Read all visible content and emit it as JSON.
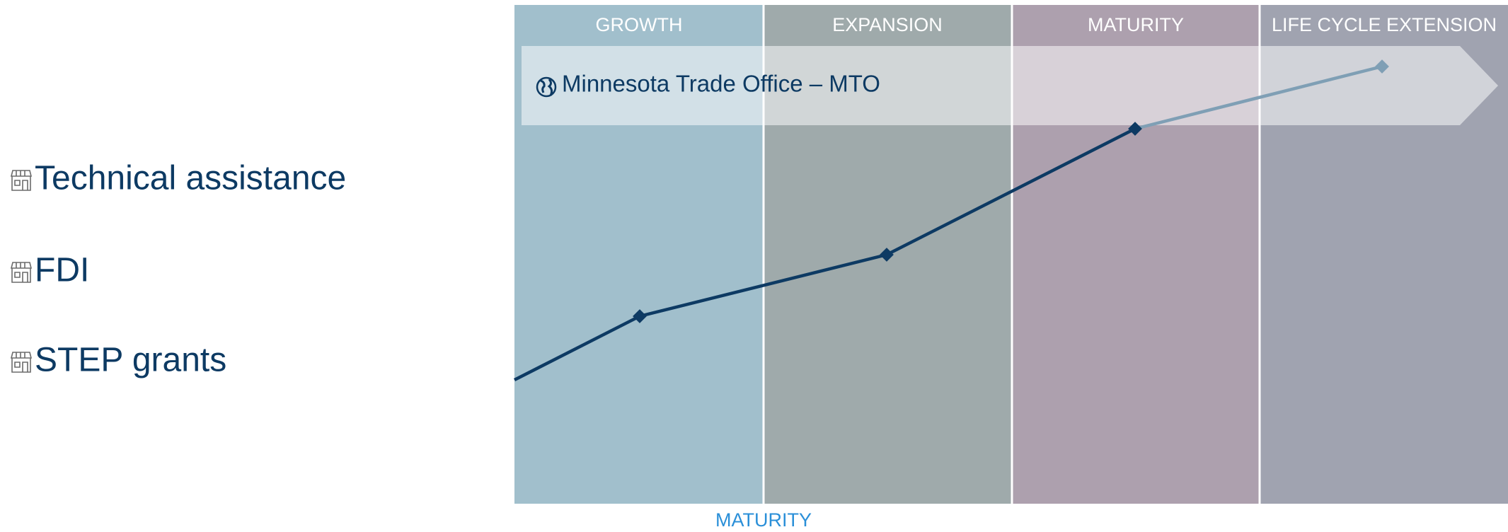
{
  "stages": [
    "GROWTH",
    "EXPANSION",
    "MATURITY",
    "LIFE CYCLE EXTENSION"
  ],
  "program": "Minnesota Trade Office – MTO",
  "services": [
    "Technical assistance",
    "FDI",
    "STEP grants"
  ],
  "axis_label": "MATURITY"
}
